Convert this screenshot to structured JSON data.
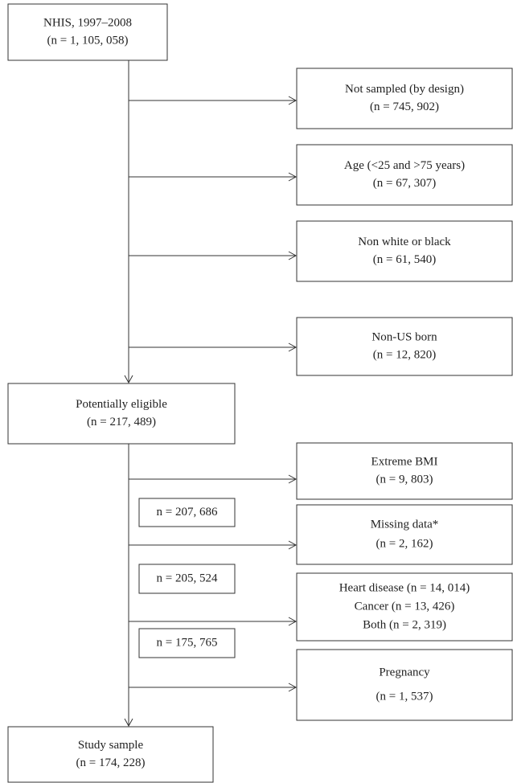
{
  "nodes": [
    {
      "lines": [
        "NHIS, 1997–2008",
        "(n = 1, 105, 058)"
      ]
    },
    {
      "lines": [
        "Not sampled (by design)",
        "(n = 745, 902)"
      ]
    },
    {
      "lines": [
        "Age (<25 and >75 years)",
        "(n = 67, 307)"
      ]
    },
    {
      "lines": [
        "Non white or black",
        "(n = 61, 540)"
      ]
    },
    {
      "lines": [
        "Non-US born",
        "(n = 12, 820)"
      ]
    },
    {
      "lines": [
        "Potentially eligible",
        "(n = 217, 489)"
      ]
    },
    {
      "lines": [
        "Extreme BMI",
        "(n = 9, 803)"
      ]
    },
    {
      "lines": [
        "Missing data*",
        "(n = 2, 162)"
      ]
    },
    {
      "lines": [
        "Heart disease (n = 14, 014)",
        "Cancer (n = 13, 426)",
        "Both (n = 2, 319)"
      ]
    },
    {
      "lines": [
        "Pregnancy",
        "(n = 1, 537)"
      ]
    },
    {
      "lines": [
        "Study sample",
        "(n = 174, 228)"
      ]
    }
  ],
  "counts": [
    "n = 207, 686",
    "n = 205, 524",
    "n = 175, 765"
  ]
}
